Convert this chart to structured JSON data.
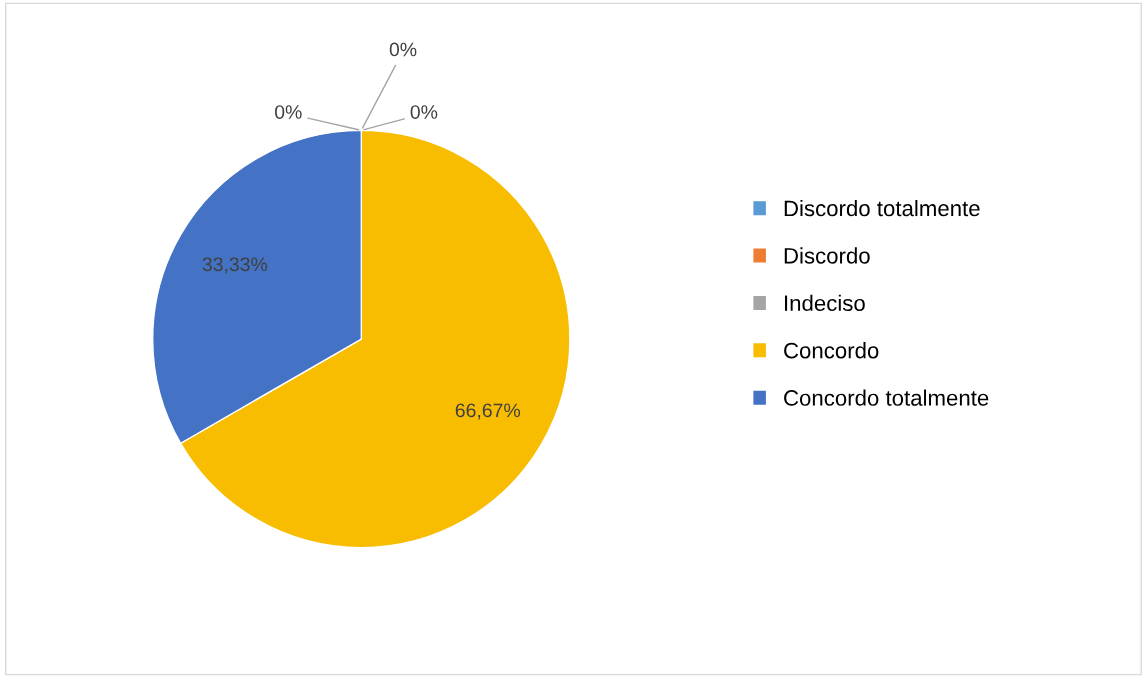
{
  "chart_data": {
    "type": "pie",
    "categories": [
      "Discordo totalmente",
      "Discordo",
      "Indeciso",
      "Concordo",
      "Concordo totalmente"
    ],
    "values": [
      0,
      0,
      0,
      66.67,
      33.33
    ],
    "colors": [
      "#5b9bd5",
      "#ed7d31",
      "#a5a5a5",
      "#f8bc00",
      "#4472c4"
    ],
    "value_labels": [
      "0%",
      "0%",
      "0%",
      "66,67%",
      "33,33%"
    ],
    "legend": "right"
  }
}
